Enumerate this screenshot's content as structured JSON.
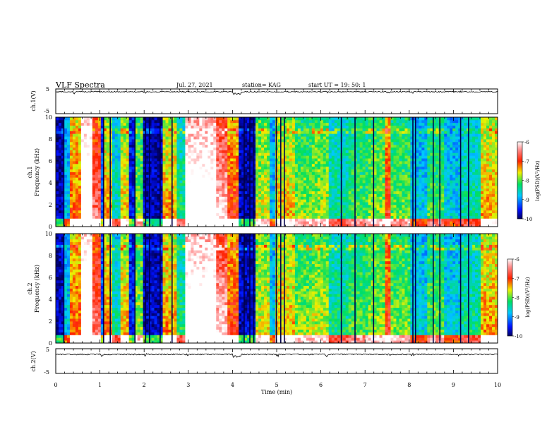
{
  "header": {
    "title": "VLF Spectra",
    "date": "Jul. 27, 2021",
    "station": "station= KAG",
    "start": "start UT = 19: 50: 1"
  },
  "chart_data": [
    {
      "type": "line",
      "name": "waveform-ch1",
      "ylabel": "ch.1(V)",
      "ylim": [
        -5,
        5
      ],
      "yticks": [
        "5",
        "-5"
      ],
      "xlim": [
        0,
        10
      ]
    },
    {
      "type": "heatmap",
      "name": "spectrogram-ch1",
      "ylabel": "ch.1\nFrequency (kHz)",
      "ylim": [
        0,
        10
      ],
      "yticks": [
        "0",
        "2",
        "4",
        "6",
        "8",
        "10"
      ],
      "xlim": [
        0,
        10
      ],
      "colorbar": {
        "label": "log(PSD)(V²/Hz)",
        "range": [
          -10,
          -6
        ],
        "ticks": [
          "-6",
          "-7",
          "-8",
          "-9",
          "-10"
        ]
      }
    },
    {
      "type": "heatmap",
      "name": "spectrogram-ch2",
      "ylabel": "ch.2\nFrequency (kHz)",
      "ylim": [
        0,
        10
      ],
      "yticks": [
        "0",
        "2",
        "4",
        "6",
        "8",
        "10"
      ],
      "xlim": [
        0,
        10
      ],
      "colorbar": {
        "label": "log(PSD)(V²/Hz)",
        "range": [
          -10,
          -6
        ],
        "ticks": [
          "-6",
          "-7",
          "-8",
          "-9",
          "-10"
        ]
      }
    },
    {
      "type": "line",
      "name": "waveform-ch2",
      "ylabel": "ch.2(V)",
      "ylim": [
        -5,
        5
      ],
      "yticks": [
        "5",
        "-5"
      ],
      "xlim": [
        0,
        10
      ],
      "xlabel": "Time (min)",
      "xticks": [
        "0",
        "1",
        "2",
        "3",
        "4",
        "5",
        "6",
        "7",
        "8",
        "9",
        "10"
      ]
    }
  ],
  "segments": [
    {
      "t0": 0.0,
      "t1": 0.18,
      "level": -9.8,
      "cut": 0.05
    },
    {
      "t0": 0.18,
      "t1": 0.35,
      "level": -8.9,
      "cut": 0.1
    },
    {
      "t0": 0.35,
      "t1": 0.55,
      "level": -7.6,
      "cut": 0.4
    },
    {
      "t0": 0.55,
      "t1": 0.85,
      "level": -6.1,
      "cut": 0.9
    },
    {
      "t0": 0.85,
      "t1": 1.0,
      "level": -7.2,
      "cut": 0.6
    },
    {
      "t0": 1.0,
      "t1": 1.1,
      "level": -9.4,
      "cut": 0.1
    },
    {
      "t0": 1.1,
      "t1": 1.3,
      "level": -7.8,
      "cut": 0.5
    },
    {
      "t0": 1.3,
      "t1": 1.45,
      "level": -8.8,
      "cut": 0.3
    },
    {
      "t0": 1.45,
      "t1": 1.65,
      "level": -7.9,
      "cut": 0.4
    },
    {
      "t0": 1.65,
      "t1": 1.8,
      "level": -9.6,
      "cut": 0.05
    },
    {
      "t0": 1.8,
      "t1": 2.0,
      "level": -8.2,
      "cut": 0.3
    },
    {
      "t0": 2.0,
      "t1": 2.4,
      "level": -9.8,
      "cut": 0.05
    },
    {
      "t0": 2.4,
      "t1": 2.75,
      "level": -7.8,
      "cut": 0.4
    },
    {
      "t0": 2.75,
      "t1": 2.95,
      "level": -8.6,
      "cut": 0.3
    },
    {
      "t0": 2.95,
      "t1": 3.6,
      "level": -6.3,
      "cut": 0.9
    },
    {
      "t0": 3.6,
      "t1": 3.9,
      "level": -6.9,
      "cut": 0.7
    },
    {
      "t0": 3.9,
      "t1": 4.15,
      "level": -7.5,
      "cut": 0.5
    },
    {
      "t0": 4.15,
      "t1": 4.55,
      "level": -9.8,
      "cut": 0.05
    },
    {
      "t0": 4.55,
      "t1": 4.85,
      "level": -8.0,
      "cut": 0.3
    },
    {
      "t0": 4.85,
      "t1": 5.0,
      "level": -9.0,
      "cut": 0.2
    },
    {
      "t0": 5.0,
      "t1": 5.4,
      "level": -7.9,
      "cut": 0.4
    },
    {
      "t0": 5.4,
      "t1": 5.8,
      "level": -8.3,
      "cut": 0.4
    },
    {
      "t0": 5.8,
      "t1": 6.2,
      "level": -8.1,
      "cut": 0.3
    },
    {
      "t0": 6.2,
      "t1": 6.6,
      "level": -8.6,
      "cut": 0.2
    },
    {
      "t0": 6.6,
      "t1": 7.1,
      "level": -8.4,
      "cut": 0.3
    },
    {
      "t0": 7.1,
      "t1": 7.45,
      "level": -8.2,
      "cut": 0.3
    },
    {
      "t0": 7.45,
      "t1": 7.6,
      "level": -7.4,
      "cut": 0.5
    },
    {
      "t0": 7.6,
      "t1": 8.0,
      "level": -8.3,
      "cut": 0.3
    },
    {
      "t0": 8.0,
      "t1": 8.4,
      "level": -8.9,
      "cut": 0.2
    },
    {
      "t0": 8.4,
      "t1": 8.8,
      "level": -8.4,
      "cut": 0.3
    },
    {
      "t0": 8.8,
      "t1": 9.2,
      "level": -8.9,
      "cut": 0.2
    },
    {
      "t0": 9.2,
      "t1": 9.6,
      "level": -8.7,
      "cut": 0.3
    },
    {
      "t0": 9.6,
      "t1": 9.85,
      "level": -7.8,
      "cut": 0.4
    }
  ],
  "dark_lines": [
    0.17,
    1.07,
    1.22,
    1.78,
    2.02,
    2.11,
    2.35,
    2.62,
    4.25,
    4.38,
    4.47,
    4.98,
    5.08,
    5.16,
    6.45,
    6.76,
    7.18,
    8.07,
    8.13,
    8.53,
    8.68,
    9.15,
    9.33
  ],
  "spikes": [
    0.42,
    1.03,
    2.02,
    2.97,
    4.06,
    5.03,
    6.14,
    7.53,
    8.08,
    9.14
  ]
}
